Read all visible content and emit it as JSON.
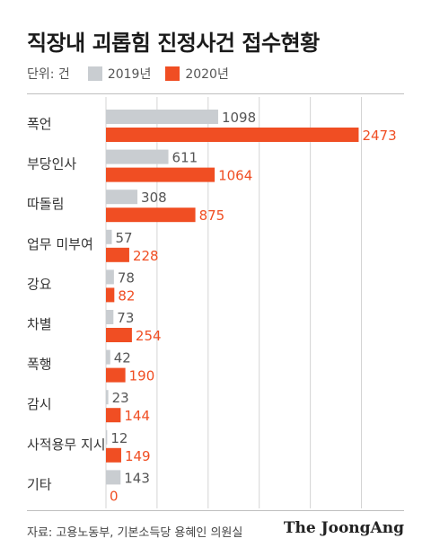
{
  "title": "직장내 괴롭힘 진정사건 접수현황",
  "unit_label": "단위: 건",
  "colors": {
    "y2019": "#c9cdd1",
    "y2020": "#f04e23",
    "grid": "#d4d4d4",
    "label": "#333333",
    "value2019": "#555555",
    "value2020": "#f04e23"
  },
  "chart_data": {
    "type": "bar",
    "orientation": "horizontal",
    "categories": [
      "폭언",
      "부당인사",
      "따돌림",
      "업무 미부여",
      "강요",
      "차별",
      "폭행",
      "감시",
      "사적용무 지시",
      "기타"
    ],
    "series": [
      {
        "name": "2019년",
        "values": [
          1098,
          611,
          308,
          57,
          78,
          73,
          42,
          23,
          12,
          143
        ]
      },
      {
        "name": "2020년",
        "values": [
          2473,
          1064,
          875,
          228,
          82,
          254,
          190,
          144,
          149,
          0
        ]
      }
    ],
    "xlim": [
      0,
      2970
    ],
    "grid": true,
    "legend_position": "top-left"
  },
  "source": "자료: 고용노동부, 기본소득당 용혜인 의원실",
  "brand": "The JoongAng"
}
